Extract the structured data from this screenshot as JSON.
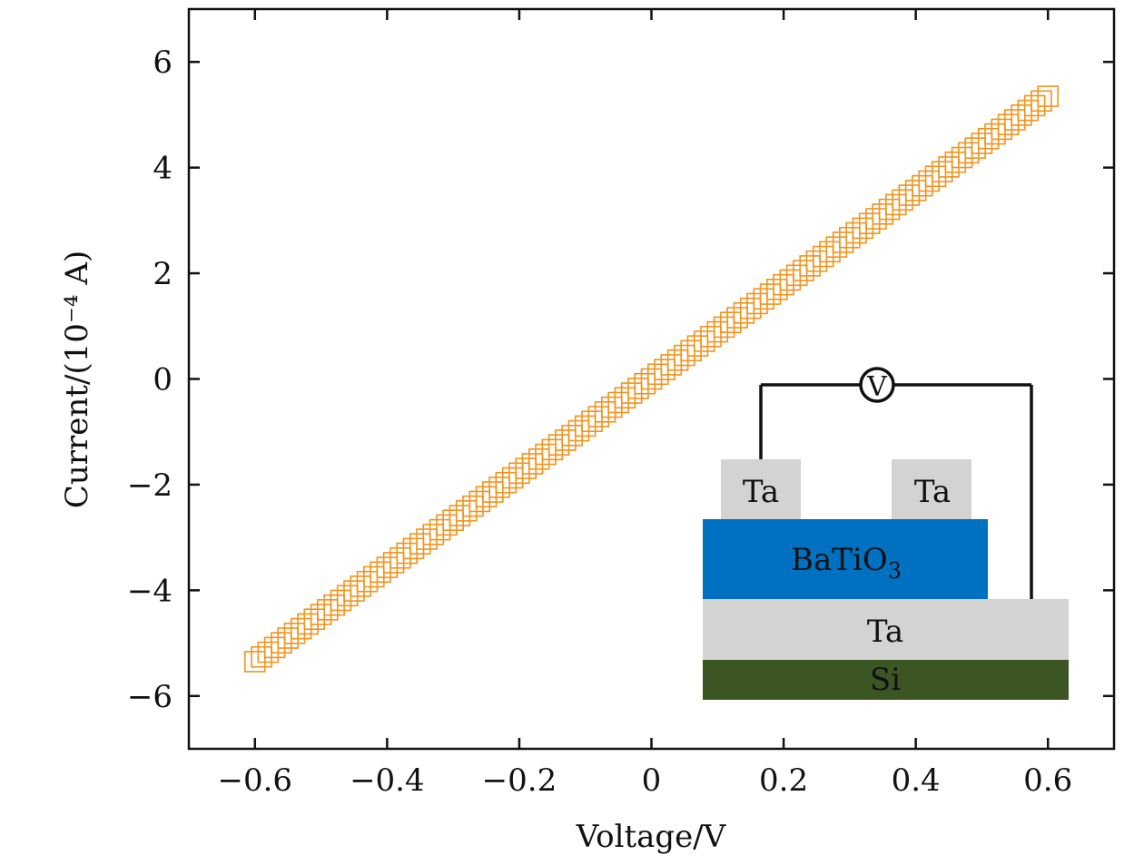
{
  "chart_data": {
    "type": "scatter",
    "xlabel": "Voltage/V",
    "ylabel": "Current/(10⁻⁴ A)",
    "xlim": [
      -0.7,
      0.7
    ],
    "ylim": [
      -7,
      7
    ],
    "x_ticks": [
      "−0.6",
      "−0.4",
      "−0.2",
      "0",
      "0.2",
      "0.4",
      "0.6"
    ],
    "y_ticks": [
      "6",
      "4",
      "2",
      "0",
      "−2",
      "−4",
      "−6"
    ],
    "x_tick_values": [
      -0.6,
      -0.4,
      -0.2,
      0,
      0.2,
      0.4,
      0.6
    ],
    "y_tick_values": [
      6,
      4,
      2,
      0,
      -2,
      -4,
      -6
    ],
    "grid": false,
    "marker": "open-square",
    "series": [
      {
        "x_start": -0.6,
        "x_end": 0.6,
        "x_step": 0.01,
        "y_start": -5.35,
        "y_end": 5.35,
        "color": "#f0931e"
      }
    ],
    "inset": {
      "voltmeter": "V",
      "top_left_electrode": "Ta",
      "top_right_electrode": "Ta",
      "dielectric": "BaTiO",
      "dielectric_subscript": "3",
      "bottom_electrode": "Ta",
      "substrate": "Si",
      "colors": {
        "electrode": "#d3d3d3",
        "dielectric": "#0070c0",
        "substrate": "#3c5623",
        "wire": "#111111"
      }
    }
  }
}
